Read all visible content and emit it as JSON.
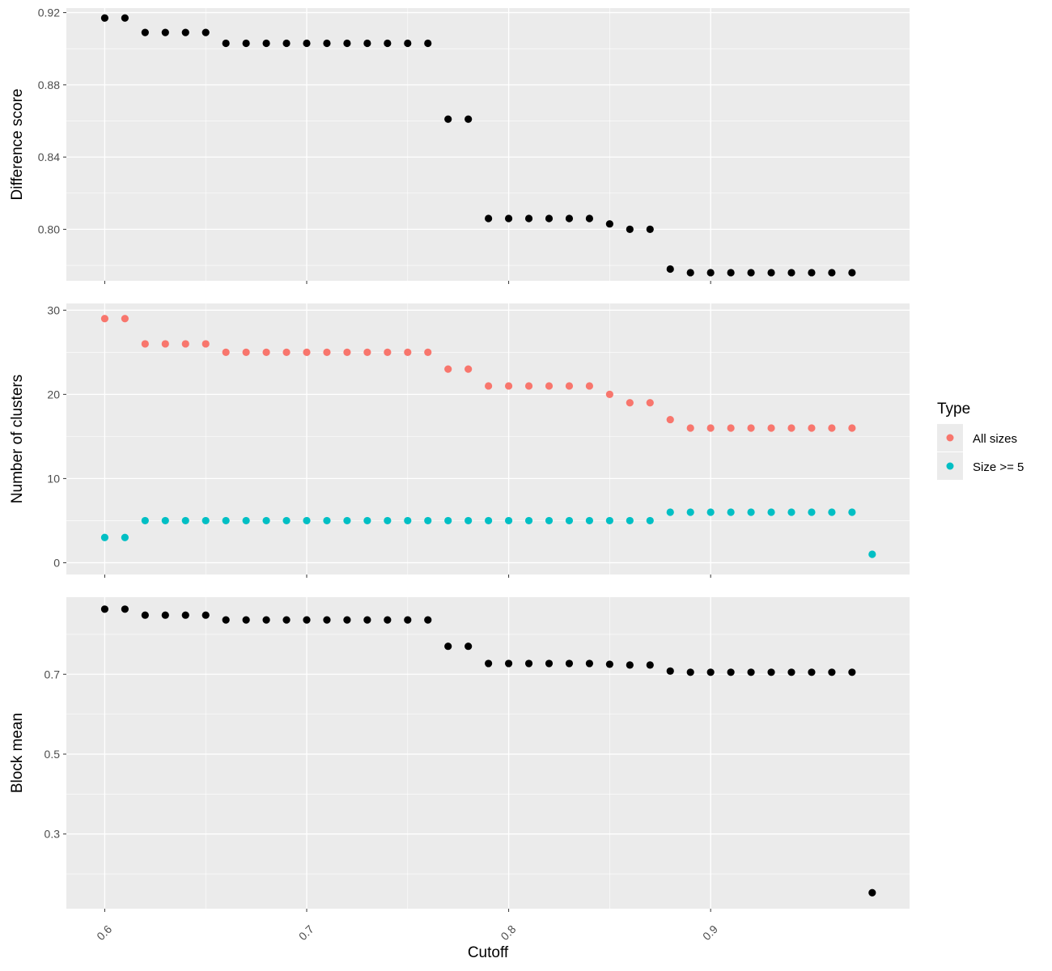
{
  "chart_data": {
    "type": "scatter",
    "xlabel": "Cutoff",
    "x_ticks": [
      "0.6",
      "0.7",
      "0.8",
      "0.9"
    ],
    "xlim": [
      0.581,
      0.9985
    ],
    "grid": true,
    "legend": {
      "title": "Type",
      "placement": "right",
      "entries": [
        {
          "label": "All sizes",
          "color": "#F8766D"
        },
        {
          "label": "Size >= 5",
          "color": "#00BFC4"
        }
      ]
    },
    "panels": [
      {
        "ylabel": "Difference score",
        "ylim": [
          0.7715,
          0.9225
        ],
        "y_ticks": [
          "0.80",
          "0.84",
          "0.88",
          "0.92"
        ],
        "series": [
          {
            "color": "#000000",
            "x": [
              0.6,
              0.61,
              0.62,
              0.63,
              0.64,
              0.65,
              0.66,
              0.67,
              0.68,
              0.69,
              0.7,
              0.71,
              0.72,
              0.73,
              0.74,
              0.75,
              0.76,
              0.77,
              0.78,
              0.79,
              0.8,
              0.81,
              0.82,
              0.83,
              0.84,
              0.85,
              0.86,
              0.87,
              0.88,
              0.89,
              0.9,
              0.91,
              0.92,
              0.93,
              0.94,
              0.95,
              0.96,
              0.97
            ],
            "y": [
              0.917,
              0.917,
              0.909,
              0.909,
              0.909,
              0.909,
              0.903,
              0.903,
              0.903,
              0.903,
              0.903,
              0.903,
              0.903,
              0.903,
              0.903,
              0.903,
              0.903,
              0.861,
              0.861,
              0.806,
              0.806,
              0.806,
              0.806,
              0.806,
              0.806,
              0.803,
              0.8,
              0.8,
              0.778,
              0.776,
              0.776,
              0.776,
              0.776,
              0.776,
              0.776,
              0.776,
              0.776,
              0.776
            ]
          }
        ]
      },
      {
        "ylabel": "Number of clusters",
        "ylim": [
          -1.4,
          30.8
        ],
        "y_ticks": [
          "0",
          "10",
          "20",
          "30"
        ],
        "series": [
          {
            "name": "All sizes",
            "color": "#F8766D",
            "x": [
              0.6,
              0.61,
              0.62,
              0.63,
              0.64,
              0.65,
              0.66,
              0.67,
              0.68,
              0.69,
              0.7,
              0.71,
              0.72,
              0.73,
              0.74,
              0.75,
              0.76,
              0.77,
              0.78,
              0.79,
              0.8,
              0.81,
              0.82,
              0.83,
              0.84,
              0.85,
              0.86,
              0.87,
              0.88,
              0.89,
              0.9,
              0.91,
              0.92,
              0.93,
              0.94,
              0.95,
              0.96,
              0.97
            ],
            "y": [
              29,
              29,
              26,
              26,
              26,
              26,
              25,
              25,
              25,
              25,
              25,
              25,
              25,
              25,
              25,
              25,
              25,
              23,
              23,
              21,
              21,
              21,
              21,
              21,
              21,
              20,
              19,
              19,
              17,
              16,
              16,
              16,
              16,
              16,
              16,
              16,
              16,
              16
            ]
          },
          {
            "name": "Size >= 5",
            "color": "#00BFC4",
            "x": [
              0.6,
              0.61,
              0.62,
              0.63,
              0.64,
              0.65,
              0.66,
              0.67,
              0.68,
              0.69,
              0.7,
              0.71,
              0.72,
              0.73,
              0.74,
              0.75,
              0.76,
              0.77,
              0.78,
              0.79,
              0.8,
              0.81,
              0.82,
              0.83,
              0.84,
              0.85,
              0.86,
              0.87,
              0.88,
              0.89,
              0.9,
              0.91,
              0.92,
              0.93,
              0.94,
              0.95,
              0.96,
              0.97,
              0.98
            ],
            "y": [
              3,
              3,
              5,
              5,
              5,
              5,
              5,
              5,
              5,
              5,
              5,
              5,
              5,
              5,
              5,
              5,
              5,
              5,
              5,
              5,
              5,
              5,
              5,
              5,
              5,
              5,
              5,
              5,
              6,
              6,
              6,
              6,
              6,
              6,
              6,
              6,
              6,
              6,
              1
            ]
          }
        ]
      },
      {
        "ylabel": "Block mean",
        "ylim": [
          0.113,
          0.893
        ],
        "y_ticks": [
          "0.3",
          "0.5",
          "0.7"
        ],
        "series": [
          {
            "color": "#000000",
            "x": [
              0.6,
              0.61,
              0.62,
              0.63,
              0.64,
              0.65,
              0.66,
              0.67,
              0.68,
              0.69,
              0.7,
              0.71,
              0.72,
              0.73,
              0.74,
              0.75,
              0.76,
              0.77,
              0.78,
              0.79,
              0.8,
              0.81,
              0.82,
              0.83,
              0.84,
              0.85,
              0.86,
              0.87,
              0.88,
              0.89,
              0.9,
              0.91,
              0.92,
              0.93,
              0.94,
              0.95,
              0.96,
              0.97,
              0.98
            ],
            "y": [
              0.863,
              0.863,
              0.848,
              0.848,
              0.848,
              0.848,
              0.836,
              0.836,
              0.836,
              0.836,
              0.836,
              0.836,
              0.836,
              0.836,
              0.836,
              0.836,
              0.836,
              0.77,
              0.77,
              0.727,
              0.727,
              0.727,
              0.727,
              0.727,
              0.727,
              0.725,
              0.723,
              0.723,
              0.708,
              0.705,
              0.705,
              0.705,
              0.705,
              0.705,
              0.705,
              0.705,
              0.705,
              0.705,
              0.153
            ]
          }
        ]
      }
    ]
  }
}
